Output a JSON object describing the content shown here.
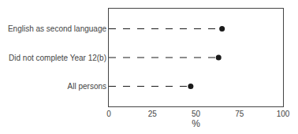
{
  "chart_data": {
    "type": "dot",
    "orientation": "horizontal",
    "categories": [
      "All persons",
      "Did not complete Year 12(b)",
      "English as second language"
    ],
    "values": [
      47,
      63,
      65
    ],
    "xlabel": "%",
    "xlim": [
      0,
      100
    ],
    "xticks": [
      0,
      25,
      50,
      75,
      100
    ],
    "color": "#1a1a1a",
    "marker": "circle",
    "line_style": "dash",
    "grid": false
  }
}
